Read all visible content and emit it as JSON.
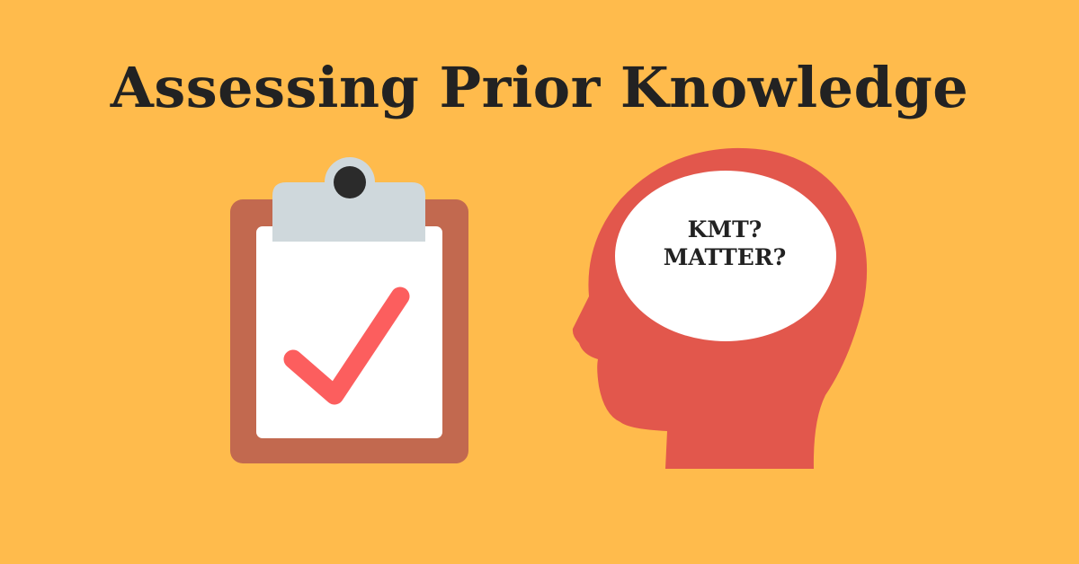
{
  "title": "Assessing Prior Knowledge",
  "thought_bubble": {
    "lines": [
      "KMT?",
      "MATTER?"
    ]
  },
  "icons": {
    "clipboard": "clipboard-checkmark-icon",
    "head": "head-silhouette-icon"
  },
  "colors": {
    "background": "#FFBB4C",
    "title_text": "#222222",
    "clipboard_board": "#C2694F",
    "clipboard_paper": "#FFFFFF",
    "clipboard_clip": "#CFD8DC",
    "clipboard_clip_hole": "#2B2B2B",
    "checkmark": "#FC5E5E",
    "head": "#E2574C",
    "bubble": "#FFFFFF"
  }
}
